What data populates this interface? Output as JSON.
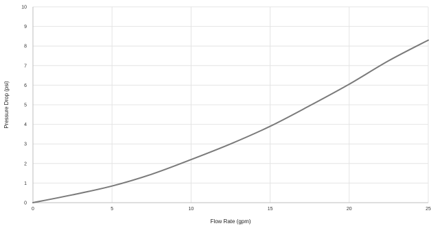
{
  "chart_data": {
    "type": "line",
    "title": "",
    "xlabel": "Flow Rate (gpm)",
    "ylabel": "Pressure Drop (psi)",
    "xlim": [
      0,
      25
    ],
    "ylim": [
      0,
      10
    ],
    "x_ticks": [
      0,
      5,
      10,
      15,
      20,
      25
    ],
    "x_tick_labels": [
      "0",
      "5",
      "10",
      "15",
      "20",
      "25"
    ],
    "y_ticks": [
      0,
      1,
      2,
      3,
      4,
      5,
      6,
      7,
      8,
      9,
      10
    ],
    "y_tick_labels": [
      "0",
      "1",
      "2",
      "3",
      "4",
      "5",
      "6",
      "7",
      "8",
      "9",
      "10"
    ],
    "grid": true,
    "series": [
      {
        "color": "#7a7a7a",
        "x": [
          0,
          2.5,
          5,
          7.5,
          10,
          12.5,
          15,
          17.5,
          20,
          22.5,
          25
        ],
        "y": [
          0,
          0.4,
          0.85,
          1.45,
          2.2,
          3.0,
          3.9,
          4.95,
          6.05,
          7.25,
          8.3
        ]
      }
    ]
  }
}
